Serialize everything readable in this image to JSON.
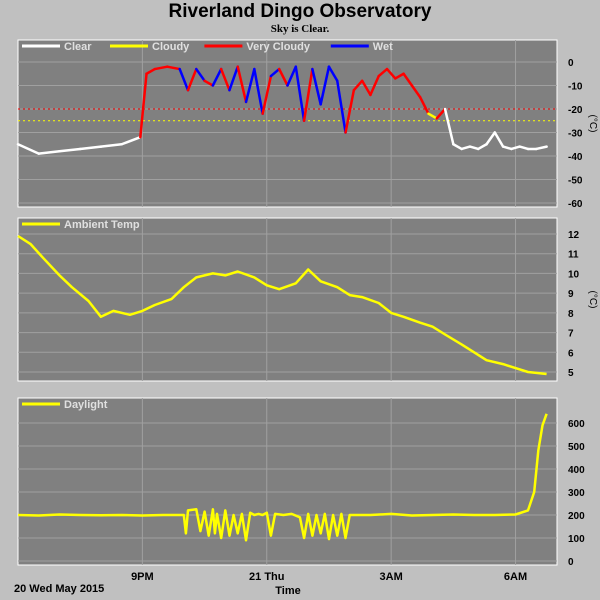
{
  "header": {
    "title": "Riverland Dingo Observatory",
    "subtitle": "Sky is Clear."
  },
  "footer": {
    "date_label": "20 Wed May 2015",
    "x_axis_label": "Time"
  },
  "colors": {
    "background": "#c0c0c0",
    "panel": "#808080",
    "clear": "#ffffff",
    "cloudy": "#ffff00",
    "very_cloudy": "#ff0000",
    "wet": "#0000ff",
    "threshold_cloudy": "#ffff00",
    "threshold_very_cloudy": "#ff0000"
  },
  "chart_data": [
    {
      "type": "line",
      "panel": "sky",
      "y_unit": "(°C)",
      "ylim": [
        -60,
        5
      ],
      "yticks": [
        "0",
        "-10",
        "-20",
        "-30",
        "-40",
        "-50",
        "-60"
      ],
      "grid": true,
      "legend_position": "top-left",
      "legend": [
        "Clear",
        "Cloudy",
        "Very Cloudy",
        "Wet"
      ],
      "thresholds": [
        {
          "condition": "Very Cloudy",
          "value": -20
        },
        {
          "condition": "Cloudy",
          "value": -25
        }
      ],
      "x_hours": [
        18.0,
        18.5,
        19.0,
        19.5,
        20.0,
        20.5,
        20.95,
        21.1,
        21.3,
        21.6,
        21.9,
        22.1,
        22.3,
        22.5,
        22.7,
        22.9,
        23.1,
        23.3,
        23.5,
        23.7,
        23.9,
        24.1,
        24.3,
        24.5,
        24.7,
        24.9,
        25.1,
        25.3,
        25.5,
        25.7,
        25.9,
        26.1,
        26.3,
        26.5,
        26.7,
        26.9,
        27.1,
        27.3,
        27.5,
        27.7,
        27.9,
        28.1,
        28.3,
        28.5,
        28.7,
        28.9,
        29.1,
        29.3,
        29.5,
        29.7,
        29.9,
        30.1,
        30.3,
        30.5,
        30.75
      ],
      "y_values": [
        -35,
        -39,
        -38,
        -37,
        -36,
        -35,
        -32,
        -5,
        -3,
        -2,
        -3,
        -12,
        -3,
        -8,
        -10,
        -3,
        -12,
        -2,
        -17,
        -3,
        -22,
        -6,
        -3,
        -10,
        -2,
        -25,
        -3,
        -18,
        -2,
        -8,
        -30,
        -12,
        -8,
        -14,
        -6,
        -3,
        -7,
        -5,
        -10,
        -15,
        -22,
        -24,
        -20,
        -35,
        -37,
        -36,
        -37,
        -35,
        -30,
        -36,
        -37,
        -36,
        -37,
        -37,
        -36
      ],
      "y_condition": [
        "Clear",
        "Clear",
        "Clear",
        "Clear",
        "Clear",
        "Clear",
        "Clear",
        "Very Cloudy",
        "Very Cloudy",
        "Very Cloudy",
        "Very Cloudy",
        "Wet",
        "Very Cloudy",
        "Wet",
        "Very Cloudy",
        "Wet",
        "Very Cloudy",
        "Wet",
        "Very Cloudy",
        "Wet",
        "Wet",
        "Very Cloudy",
        "Wet",
        "Very Cloudy",
        "Wet",
        "Wet",
        "Very Cloudy",
        "Wet",
        "Wet",
        "Wet",
        "Wet",
        "Very Cloudy",
        "Very Cloudy",
        "Very Cloudy",
        "Very Cloudy",
        "Very Cloudy",
        "Very Cloudy",
        "Very Cloudy",
        "Very Cloudy",
        "Very Cloudy",
        "Very Cloudy",
        "Cloudy",
        "Very Cloudy",
        "Clear",
        "Clear",
        "Clear",
        "Clear",
        "Clear",
        "Clear",
        "Clear",
        "Clear",
        "Clear",
        "Clear",
        "Clear",
        "Clear"
      ]
    },
    {
      "type": "line",
      "panel": "ambient",
      "y_unit": "(°C)",
      "ylim": [
        4.5,
        12.5
      ],
      "yticks": [
        "12",
        "11",
        "10",
        "9",
        "8",
        "7",
        "6",
        "5"
      ],
      "grid": true,
      "legend_position": "top-left",
      "series": [
        {
          "name": "Ambient Temp",
          "x_hours": [
            18.0,
            18.3,
            18.6,
            19.0,
            19.3,
            19.7,
            20.0,
            20.3,
            20.7,
            21.0,
            21.3,
            21.7,
            22.0,
            22.3,
            22.7,
            23.0,
            23.3,
            23.7,
            24.0,
            24.3,
            24.7,
            25.0,
            25.3,
            25.7,
            26.0,
            26.3,
            26.7,
            27.0,
            27.3,
            27.7,
            28.0,
            28.3,
            28.7,
            29.0,
            29.3,
            29.7,
            30.0,
            30.3,
            30.75
          ],
          "values": [
            11.9,
            11.5,
            10.8,
            9.9,
            9.3,
            8.6,
            7.8,
            8.1,
            7.9,
            8.1,
            8.4,
            8.7,
            9.3,
            9.8,
            10.0,
            9.9,
            10.1,
            9.8,
            9.4,
            9.2,
            9.5,
            10.2,
            9.6,
            9.3,
            8.9,
            8.8,
            8.5,
            8.0,
            7.8,
            7.5,
            7.3,
            6.9,
            6.4,
            6.0,
            5.6,
            5.4,
            5.2,
            5.0,
            4.9
          ]
        }
      ]
    },
    {
      "type": "line",
      "panel": "daylight",
      "y_unit": "",
      "ylim": [
        0,
        650
      ],
      "yticks": [
        "600",
        "500",
        "400",
        "300",
        "200",
        "100",
        "0"
      ],
      "grid": true,
      "legend_position": "top-left",
      "series": [
        {
          "name": "Daylight",
          "x_hours": [
            18.0,
            18.5,
            19.0,
            19.5,
            20.0,
            20.5,
            21.0,
            21.5,
            22.0,
            22.05,
            22.1,
            22.3,
            22.4,
            22.5,
            22.6,
            22.7,
            22.75,
            22.8,
            22.9,
            23.0,
            23.1,
            23.2,
            23.3,
            23.4,
            23.5,
            23.6,
            23.7,
            23.8,
            23.9,
            24.0,
            24.1,
            24.2,
            24.4,
            24.6,
            24.8,
            24.9,
            25.0,
            25.1,
            25.2,
            25.3,
            25.4,
            25.5,
            25.6,
            25.7,
            25.8,
            25.9,
            26.0,
            26.5,
            27.0,
            27.5,
            28.0,
            28.5,
            29.0,
            29.5,
            30.0,
            30.3,
            30.45,
            30.55,
            30.65,
            30.75
          ],
          "values": [
            200,
            198,
            202,
            200,
            199,
            200,
            198,
            200,
            200,
            120,
            220,
            225,
            130,
            215,
            110,
            225,
            120,
            205,
            100,
            220,
            110,
            200,
            120,
            205,
            90,
            210,
            200,
            205,
            200,
            210,
            110,
            205,
            200,
            205,
            190,
            100,
            205,
            110,
            200,
            120,
            205,
            95,
            200,
            110,
            205,
            100,
            200,
            200,
            205,
            198,
            200,
            202,
            200,
            200,
            202,
            220,
            300,
            480,
            590,
            640
          ]
        }
      ]
    }
  ],
  "x_axis": {
    "ticks": [
      {
        "hour": 21,
        "label": "9PM"
      },
      {
        "hour": 24,
        "label": "21 Thu"
      },
      {
        "hour": 27,
        "label": "3AM"
      },
      {
        "hour": 30,
        "label": "6AM"
      }
    ]
  }
}
